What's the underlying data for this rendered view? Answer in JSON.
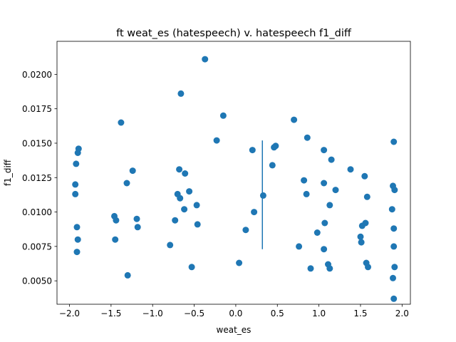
{
  "chart_data": {
    "type": "scatter",
    "title": "ft weat_es (hatespeech) v. hatespeech f1_diff",
    "xlabel": "weat_es",
    "ylabel": "f1_diff",
    "xlim": [
      -2.15,
      2.1
    ],
    "ylim": [
      0.0033,
      0.0224
    ],
    "xticks": [
      -2.0,
      -1.5,
      -1.0,
      -0.5,
      0.0,
      0.5,
      1.0,
      1.5,
      2.0
    ],
    "xtick_labels": [
      "−2.0",
      "−1.5",
      "−1.0",
      "−0.5",
      "0.0",
      "0.5",
      "1.0",
      "1.5",
      "2.0"
    ],
    "yticks": [
      0.005,
      0.0075,
      0.01,
      0.0125,
      0.015,
      0.0175,
      0.02
    ],
    "ytick_labels": [
      "0.0050",
      "0.0075",
      "0.0100",
      "0.0125",
      "0.0150",
      "0.0175",
      "0.0200"
    ],
    "grid": false,
    "color": "#1f77b4",
    "vline": {
      "x": 0.32,
      "ymin": 0.0073,
      "ymax": 0.0152
    },
    "points": [
      [
        -1.93,
        0.012
      ],
      [
        -1.93,
        0.0113
      ],
      [
        -1.92,
        0.0135
      ],
      [
        -1.9,
        0.0143
      ],
      [
        -1.89,
        0.0146
      ],
      [
        -1.91,
        0.0089
      ],
      [
        -1.9,
        0.008
      ],
      [
        -1.91,
        0.0071
      ],
      [
        -1.38,
        0.0165
      ],
      [
        -1.46,
        0.0097
      ],
      [
        -1.44,
        0.0094
      ],
      [
        -1.45,
        0.008
      ],
      [
        -1.31,
        0.0121
      ],
      [
        -1.24,
        0.013
      ],
      [
        -1.3,
        0.0054
      ],
      [
        -1.19,
        0.0095
      ],
      [
        -1.18,
        0.0089
      ],
      [
        -0.79,
        0.0076
      ],
      [
        -0.73,
        0.0094
      ],
      [
        -0.66,
        0.0186
      ],
      [
        -0.68,
        0.0131
      ],
      [
        -0.61,
        0.0128
      ],
      [
        -0.7,
        0.0113
      ],
      [
        -0.67,
        0.011
      ],
      [
        -0.62,
        0.0102
      ],
      [
        -0.56,
        0.0115
      ],
      [
        -0.53,
        0.006
      ],
      [
        -0.47,
        0.0105
      ],
      [
        -0.46,
        0.0091
      ],
      [
        -0.37,
        0.0211
      ],
      [
        -0.15,
        0.017
      ],
      [
        -0.23,
        0.0152
      ],
      [
        0.04,
        0.0063
      ],
      [
        0.12,
        0.0087
      ],
      [
        0.2,
        0.0145
      ],
      [
        0.22,
        0.01
      ],
      [
        0.33,
        0.0112
      ],
      [
        0.44,
        0.0134
      ],
      [
        0.46,
        0.0147
      ],
      [
        0.48,
        0.0148
      ],
      [
        0.7,
        0.0167
      ],
      [
        0.76,
        0.0075
      ],
      [
        0.82,
        0.0123
      ],
      [
        0.86,
        0.0154
      ],
      [
        0.85,
        0.0113
      ],
      [
        0.9,
        0.0059
      ],
      [
        0.98,
        0.0085
      ],
      [
        1.06,
        0.0145
      ],
      [
        1.06,
        0.0121
      ],
      [
        1.07,
        0.0092
      ],
      [
        1.06,
        0.0073
      ],
      [
        1.11,
        0.0062
      ],
      [
        1.13,
        0.0059
      ],
      [
        1.13,
        0.0105
      ],
      [
        1.15,
        0.0138
      ],
      [
        1.2,
        0.0116
      ],
      [
        1.38,
        0.0131
      ],
      [
        1.5,
        0.0082
      ],
      [
        1.51,
        0.0078
      ],
      [
        1.52,
        0.009
      ],
      [
        1.55,
        0.0126
      ],
      [
        1.56,
        0.0092
      ],
      [
        1.57,
        0.0063
      ],
      [
        1.58,
        0.0111
      ],
      [
        1.59,
        0.006
      ],
      [
        1.9,
        0.0151
      ],
      [
        1.89,
        0.0119
      ],
      [
        1.91,
        0.0116
      ],
      [
        1.88,
        0.0102
      ],
      [
        1.9,
        0.0088
      ],
      [
        1.9,
        0.0075
      ],
      [
        1.91,
        0.006
      ],
      [
        1.89,
        0.0052
      ],
      [
        1.9,
        0.0037
      ]
    ]
  }
}
